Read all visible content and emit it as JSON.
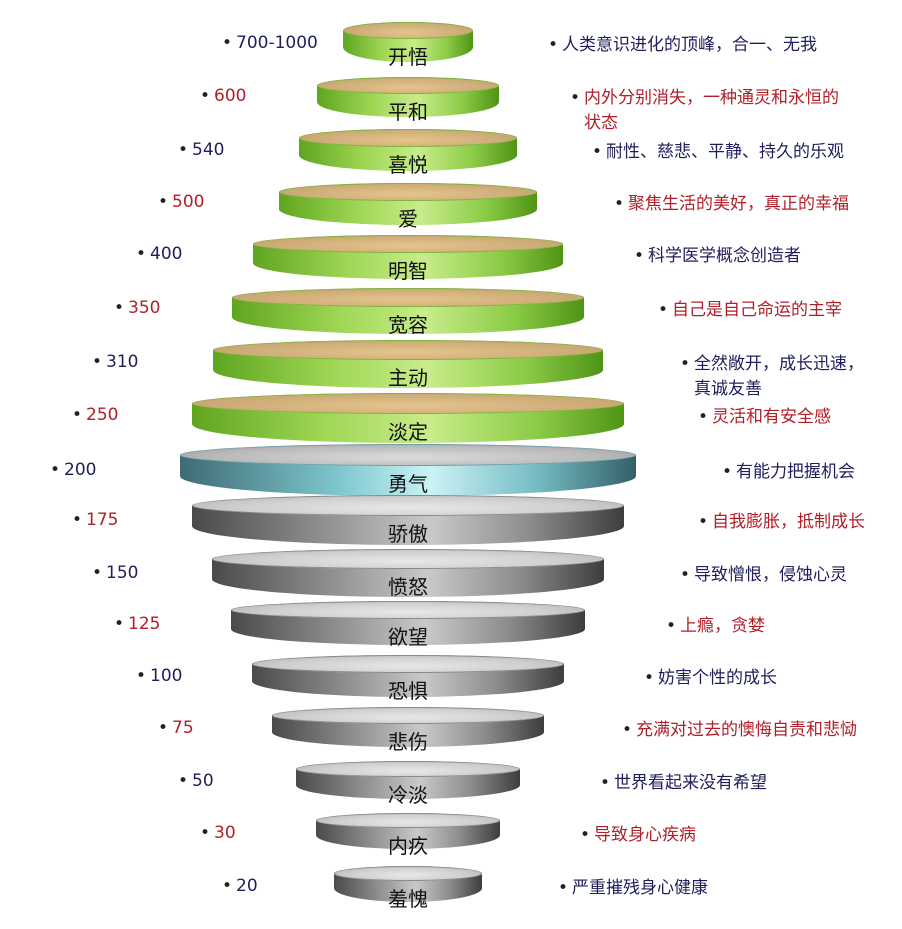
{
  "levels": [
    {
      "value": "700-1000",
      "name": "开悟",
      "desc": "人类意识进化的顶峰，合一、无我",
      "accent": "navy",
      "tone": "green"
    },
    {
      "value": "600",
      "name": "平和",
      "desc": "内外分别消失，一种通灵和永恒的状态",
      "accent": "red",
      "tone": "green"
    },
    {
      "value": "540",
      "name": "喜悦",
      "desc": "耐性、慈悲、平静、持久的乐观",
      "accent": "navy",
      "tone": "green"
    },
    {
      "value": "500",
      "name": "爱",
      "desc": "聚焦生活的美好，真正的幸福",
      "accent": "red",
      "tone": "green"
    },
    {
      "value": "400",
      "name": "明智",
      "desc": "科学医学概念创造者",
      "accent": "navy",
      "tone": "green"
    },
    {
      "value": "350",
      "name": "宽容",
      "desc": "自己是自己命运的主宰",
      "accent": "red",
      "tone": "green"
    },
    {
      "value": "310",
      "name": "主动",
      "desc": "全然敞开，成长迅速，真诚友善",
      "accent": "navy",
      "tone": "green"
    },
    {
      "value": "250",
      "name": "淡定",
      "desc": "灵活和有安全感",
      "accent": "red",
      "tone": "green"
    },
    {
      "value": "200",
      "name": "勇气",
      "desc": "有能力把握机会",
      "accent": "navy",
      "tone": "teal"
    },
    {
      "value": "175",
      "name": "骄傲",
      "desc": "自我膨胀，抵制成长",
      "accent": "red",
      "tone": "grey"
    },
    {
      "value": "150",
      "name": "愤怒",
      "desc": "导致憎恨，侵蚀心灵",
      "accent": "navy",
      "tone": "grey"
    },
    {
      "value": "125",
      "name": "欲望",
      "desc": "上瘾，贪婪",
      "accent": "red",
      "tone": "grey"
    },
    {
      "value": "100",
      "name": "恐惧",
      "desc": "妨害个性的成长",
      "accent": "navy",
      "tone": "grey"
    },
    {
      "value": "75",
      "name": "悲伤",
      "desc": "充满对过去的懊悔自责和悲恸",
      "accent": "red",
      "tone": "grey"
    },
    {
      "value": "50",
      "name": "冷淡",
      "desc": "世界看起来没有希望",
      "accent": "navy",
      "tone": "grey"
    },
    {
      "value": "30",
      "name": "内疚",
      "desc": "导致身心疾病",
      "accent": "red",
      "tone": "grey"
    },
    {
      "value": "20",
      "name": "羞愧",
      "desc": "严重摧残身心健康",
      "accent": "navy",
      "tone": "grey"
    }
  ],
  "colors": {
    "navy": "#1f1f5c",
    "red": "#b0202a"
  },
  "bullet": "•"
}
